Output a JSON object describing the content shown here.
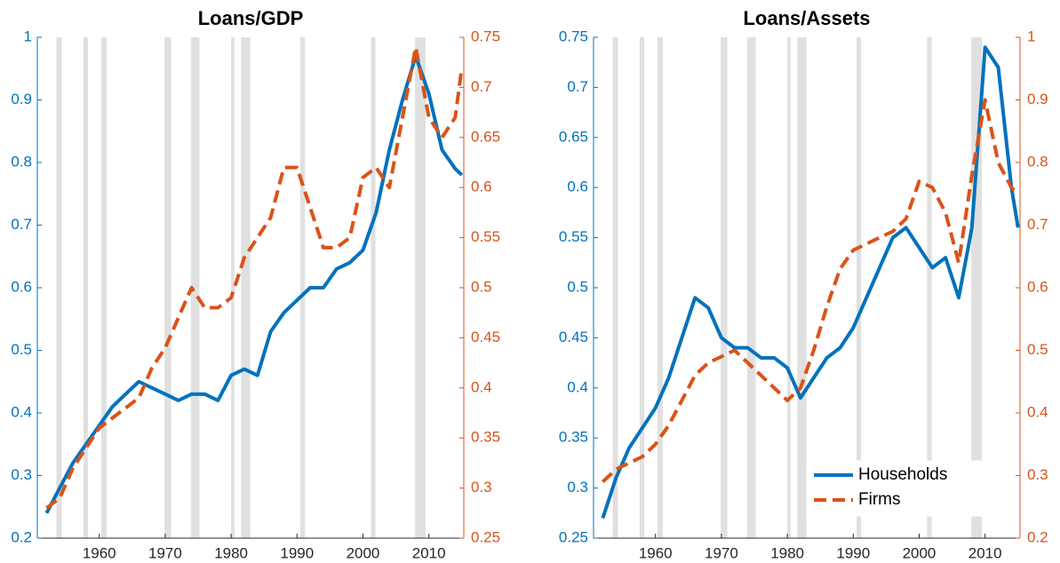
{
  "chart_data": [
    {
      "type": "line",
      "title": "Loans/GDP",
      "x": [
        1952,
        1954,
        1956,
        1958,
        1960,
        1962,
        1964,
        1966,
        1968,
        1970,
        1972,
        1974,
        1976,
        1978,
        1980,
        1982,
        1984,
        1986,
        1988,
        1990,
        1992,
        1994,
        1996,
        1998,
        2000,
        2002,
        2004,
        2006,
        2008,
        2010,
        2012,
        2014,
        2015
      ],
      "series": [
        {
          "color": "#0072bd",
          "values": [
            0.24,
            0.28,
            0.32,
            0.35,
            0.38,
            0.41,
            0.43,
            0.45,
            0.44,
            0.43,
            0.42,
            0.43,
            0.43,
            0.42,
            0.46,
            0.47,
            0.46,
            0.53,
            0.56,
            0.58,
            0.6,
            0.6,
            0.63,
            0.64,
            0.66,
            0.72,
            0.82,
            0.9,
            0.97,
            0.91,
            0.82,
            0.79,
            0.78
          ]
        },
        {
          "color": "#d95319",
          "axis": "y2",
          "dashed": true,
          "values": [
            0.28,
            0.29,
            0.32,
            0.34,
            0.36,
            0.37,
            0.38,
            0.39,
            0.42,
            0.44,
            0.47,
            0.5,
            0.48,
            0.48,
            0.49,
            0.53,
            0.55,
            0.57,
            0.62,
            0.62,
            0.58,
            0.54,
            0.54,
            0.55,
            0.61,
            0.62,
            0.6,
            0.67,
            0.74,
            0.67,
            0.65,
            0.67,
            0.72
          ]
        }
      ],
      "recessions": [
        [
          1953.5,
          1954.3
        ],
        [
          1957.6,
          1958.3
        ],
        [
          1960.3,
          1961.1
        ],
        [
          1969.9,
          1970.9
        ],
        [
          1973.9,
          1975.2
        ],
        [
          1980.0,
          1980.5
        ],
        [
          1981.5,
          1982.9
        ],
        [
          1990.5,
          1991.2
        ],
        [
          2001.2,
          2001.9
        ],
        [
          2007.9,
          2009.5
        ]
      ],
      "xlim": [
        1950.6,
        2015.3
      ],
      "xticks": [
        1960,
        1970,
        1980,
        1990,
        2000,
        2010
      ],
      "ylim": [
        0.2,
        1
      ],
      "yticks": [
        0.2,
        0.3,
        0.4,
        0.5,
        0.6,
        0.7,
        0.8,
        0.9,
        1
      ],
      "y2lim": [
        0.25,
        0.75
      ],
      "y2ticks": [
        0.25,
        0.3,
        0.35,
        0.4,
        0.45,
        0.5,
        0.55,
        0.6,
        0.65,
        0.7,
        0.75
      ]
    },
    {
      "type": "line",
      "title": "Loans/Assets",
      "x": [
        1952,
        1954,
        1956,
        1958,
        1960,
        1962,
        1964,
        1966,
        1968,
        1970,
        1972,
        1974,
        1976,
        1978,
        1980,
        1982,
        1984,
        1986,
        1988,
        1990,
        1992,
        1994,
        1996,
        1998,
        2000,
        2002,
        2004,
        2006,
        2008,
        2010,
        2012,
        2014,
        2015
      ],
      "series": [
        {
          "name": "Households",
          "color": "#0072bd",
          "values": [
            0.27,
            0.31,
            0.34,
            0.36,
            0.38,
            0.41,
            0.45,
            0.49,
            0.48,
            0.45,
            0.44,
            0.44,
            0.43,
            0.43,
            0.42,
            0.39,
            0.41,
            0.43,
            0.44,
            0.46,
            0.49,
            0.52,
            0.55,
            0.56,
            0.54,
            0.52,
            0.53,
            0.49,
            0.56,
            0.74,
            0.72,
            0.6,
            0.56
          ]
        },
        {
          "name": "Firms",
          "color": "#d95319",
          "axis": "y2",
          "dashed": true,
          "values": [
            0.29,
            0.31,
            0.32,
            0.33,
            0.35,
            0.38,
            0.42,
            0.46,
            0.48,
            0.49,
            0.5,
            0.48,
            0.46,
            0.44,
            0.42,
            0.44,
            0.5,
            0.57,
            0.63,
            0.66,
            0.67,
            0.68,
            0.69,
            0.71,
            0.77,
            0.76,
            0.72,
            0.64,
            0.78,
            0.9,
            0.8,
            0.76,
            0.75
          ]
        }
      ],
      "recessions": [
        [
          1953.5,
          1954.3
        ],
        [
          1957.6,
          1958.3
        ],
        [
          1960.3,
          1961.1
        ],
        [
          1969.9,
          1970.9
        ],
        [
          1973.9,
          1975.2
        ],
        [
          1980.0,
          1980.5
        ],
        [
          1981.5,
          1982.9
        ],
        [
          1990.5,
          1991.2
        ],
        [
          2001.2,
          2001.9
        ],
        [
          2007.9,
          2009.5
        ]
      ],
      "xlim": [
        1950.6,
        2015.3
      ],
      "xticks": [
        1960,
        1970,
        1980,
        1990,
        2000,
        2010
      ],
      "ylim": [
        0.25,
        0.75
      ],
      "yticks": [
        0.25,
        0.3,
        0.35,
        0.4,
        0.45,
        0.5,
        0.55,
        0.6,
        0.65,
        0.7,
        0.75
      ],
      "y2lim": [
        0.2,
        1
      ],
      "y2ticks": [
        0.2,
        0.3,
        0.4,
        0.5,
        0.6,
        0.7,
        0.8,
        0.9,
        1
      ],
      "legend": "lower right"
    }
  ]
}
